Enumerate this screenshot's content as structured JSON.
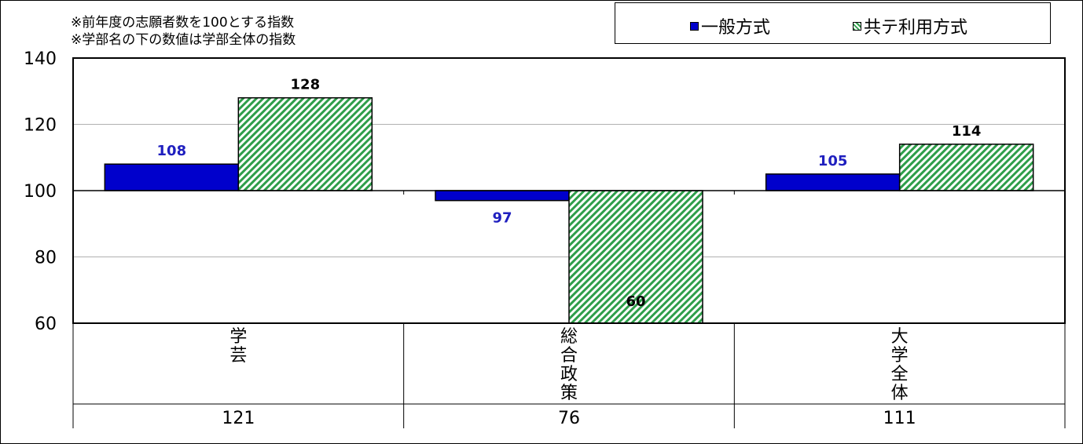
{
  "notes": [
    "※前年度の志願者数を100とする指数",
    "※学部名の下の数値は学部全体の指数"
  ],
  "legend": [
    {
      "label": "一般方式",
      "color": "#0000cc",
      "pattern": "solid"
    },
    {
      "label": "共テ利用方式",
      "color": "#2e9e4a",
      "pattern": "diagonal-hatch"
    }
  ],
  "chart_data": {
    "type": "bar",
    "categories": [
      "学芸",
      "総合政策",
      "大学全体"
    ],
    "category_index_values": [
      "121",
      "76",
      "111"
    ],
    "series": [
      {
        "name": "一般方式",
        "values": [
          108,
          97,
          105
        ],
        "color": "#0000cc",
        "label_color": "#1f1fbf"
      },
      {
        "name": "共テ利用方式",
        "values": [
          128,
          60,
          114
        ],
        "color": "#2e9e4a",
        "label_color": "#000000"
      }
    ],
    "baseline": 100,
    "ylim": [
      60,
      140
    ],
    "yticks": [
      "60",
      "80",
      "100",
      "120",
      "140"
    ],
    "grid": true,
    "legend_position": "top-right",
    "title": "",
    "xlabel": "",
    "ylabel": ""
  }
}
